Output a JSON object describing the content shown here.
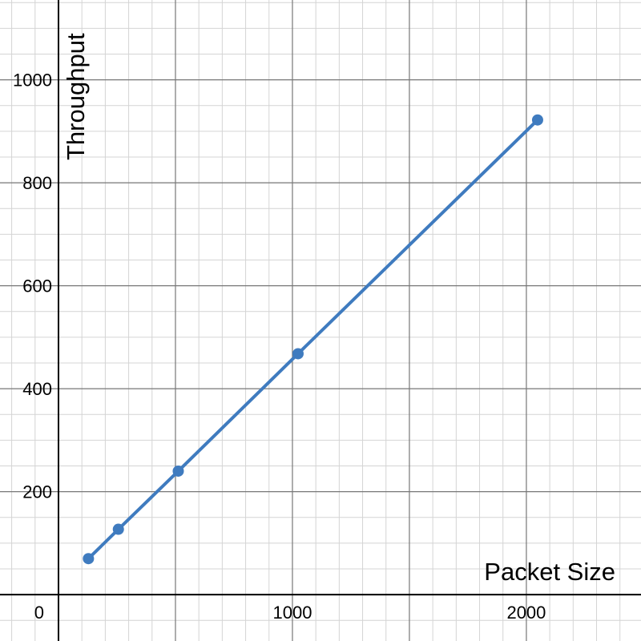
{
  "chart_data": {
    "type": "line",
    "xlabel": "Packet Size",
    "ylabel": "Throughput",
    "xlim": [
      -250,
      2490
    ],
    "ylim": [
      -90,
      1155
    ],
    "x_ticks": [
      0,
      1000,
      2000
    ],
    "y_ticks": [
      200,
      400,
      600,
      800,
      1000
    ],
    "x_tick_labels": [
      "0",
      "1000",
      "2000"
    ],
    "y_tick_labels": [
      "200",
      "400",
      "600",
      "800",
      "1000"
    ],
    "grid": true,
    "legend": false,
    "series": [
      {
        "x": [
          128,
          256,
          512,
          1024,
          2048
        ],
        "y": [
          70,
          127,
          240,
          468,
          922
        ],
        "markers": true
      }
    ],
    "colors": {
      "series": "#3f7bbf",
      "major_grid": "#777777",
      "minor_grid": "#d4d4d4",
      "axis": "#000000"
    }
  }
}
